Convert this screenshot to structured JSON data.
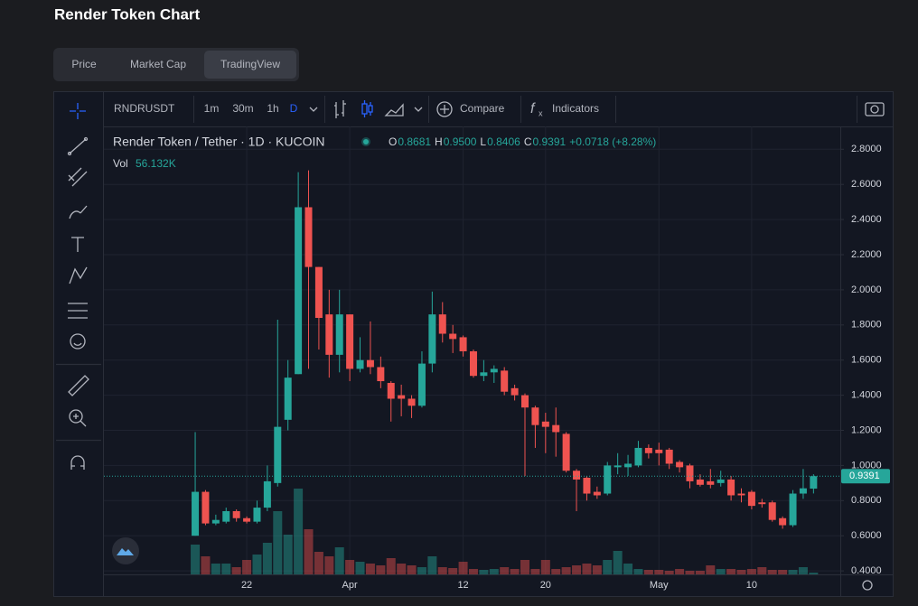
{
  "header": {
    "title": "Render Token Chart"
  },
  "tabs": [
    "Price",
    "Market Cap",
    "TradingView"
  ],
  "toolbar": {
    "symbol": "RNDRUSDT",
    "intervals": [
      "1m",
      "30m",
      "1h",
      "D"
    ],
    "compare": "Compare",
    "indicators": "Indicators"
  },
  "legend": {
    "name": "Render Token / Tether · 1D · KUCOIN",
    "ohlc": [
      {
        "key": "O",
        "value": "0.8681"
      },
      {
        "key": "H",
        "value": "0.9500"
      },
      {
        "key": "L",
        "value": "0.8406"
      },
      {
        "key": "C",
        "value": "0.9391"
      }
    ],
    "change": "+0.0718 (+8.28%)",
    "vol_key": "Vol",
    "vol_label": "56.132K"
  },
  "chart_data": {
    "type": "candlestick",
    "up_color": "#26a69a",
    "down_color": "#ef5350",
    "grid": true,
    "open": [
      0.6,
      0.85,
      0.67,
      0.68,
      0.74,
      0.7,
      0.68,
      0.76,
      0.9,
      1.26,
      1.52,
      2.47,
      2.13,
      1.86,
      1.63,
      1.86,
      1.55,
      1.6,
      1.56,
      1.47,
      1.4,
      1.38,
      1.34,
      1.58,
      1.86,
      1.75,
      1.73,
      1.65,
      1.51,
      1.53,
      1.54,
      1.44,
      1.4,
      1.33,
      1.25,
      1.23,
      1.18,
      0.97,
      0.93,
      0.85,
      0.84,
      0.99,
      0.99,
      1.0,
      1.1,
      1.09,
      1.09,
      1.02,
      1.0,
      0.92,
      0.91,
      0.9,
      0.92,
      0.84,
      0.85,
      0.79,
      0.79,
      0.7,
      0.66,
      0.84,
      0.8681
    ],
    "high": [
      1.19,
      0.86,
      0.72,
      0.76,
      0.75,
      0.71,
      0.8,
      1.0,
      1.83,
      1.6,
      2.67,
      2.68,
      2.13,
      2.0,
      2.0,
      1.86,
      1.73,
      1.82,
      1.62,
      1.48,
      1.46,
      1.4,
      1.65,
      1.99,
      1.93,
      1.8,
      1.74,
      1.66,
      1.6,
      1.57,
      1.56,
      1.46,
      1.41,
      1.34,
      1.3,
      1.33,
      1.19,
      0.98,
      0.94,
      0.88,
      1.02,
      1.07,
      1.06,
      1.14,
      1.12,
      1.13,
      1.1,
      1.03,
      1.01,
      0.95,
      0.98,
      0.97,
      0.94,
      0.87,
      0.86,
      0.81,
      0.8,
      0.71,
      0.86,
      0.98,
      0.95
    ],
    "low": [
      0.6,
      0.66,
      0.66,
      0.67,
      0.68,
      0.67,
      0.67,
      0.74,
      0.88,
      1.2,
      1.52,
      1.55,
      1.66,
      1.5,
      1.53,
      1.48,
      1.53,
      1.52,
      1.44,
      1.25,
      1.28,
      1.27,
      1.33,
      1.53,
      1.7,
      1.64,
      1.62,
      1.5,
      1.48,
      1.47,
      1.4,
      1.37,
      0.94,
      1.1,
      1.07,
      1.05,
      0.96,
      0.74,
      0.8,
      0.81,
      0.83,
      0.95,
      0.94,
      0.99,
      1.04,
      1.0,
      0.98,
      0.96,
      0.87,
      0.88,
      0.87,
      0.88,
      0.8,
      0.79,
      0.75,
      0.76,
      0.68,
      0.64,
      0.65,
      0.81,
      0.8406
    ],
    "close": [
      0.85,
      0.67,
      0.69,
      0.74,
      0.7,
      0.68,
      0.76,
      0.91,
      1.22,
      1.5,
      2.47,
      2.13,
      1.84,
      1.63,
      1.86,
      1.55,
      1.6,
      1.56,
      1.48,
      1.38,
      1.38,
      1.34,
      1.58,
      1.86,
      1.75,
      1.72,
      1.65,
      1.51,
      1.53,
      1.55,
      1.42,
      1.4,
      1.33,
      1.23,
      1.22,
      1.19,
      0.97,
      0.92,
      0.84,
      0.83,
      1.0,
      1.0,
      1.01,
      1.1,
      1.07,
      1.07,
      1.01,
      0.99,
      0.91,
      0.89,
      0.89,
      0.92,
      0.83,
      0.83,
      0.77,
      0.78,
      0.69,
      0.66,
      0.84,
      0.87,
      0.9391
    ],
    "volume": [
      924000,
      560000,
      336000,
      336000,
      224000,
      448000,
      616000,
      980000,
      1960000,
      1232000,
      2660000,
      1400000,
      700000,
      560000,
      840000,
      448000,
      392000,
      336000,
      280000,
      504000,
      336000,
      280000,
      224000,
      560000,
      224000,
      196000,
      392000,
      168000,
      140000,
      168000,
      224000,
      168000,
      448000,
      168000,
      448000,
      168000,
      224000,
      280000,
      336000,
      280000,
      448000,
      728000,
      336000,
      168000,
      140000,
      140000,
      112000,
      168000,
      112000,
      112000,
      280000,
      168000,
      168000,
      140000,
      168000,
      224000,
      140000,
      140000,
      140000,
      224000,
      56132
    ],
    "xlim": [
      -8.86,
      62.6
    ],
    "xticks": [
      {
        "value": 5,
        "label": "22"
      },
      {
        "value": 15,
        "label": "Apr"
      },
      {
        "value": 26,
        "label": "12"
      },
      {
        "value": 34,
        "label": "20"
      },
      {
        "value": 45,
        "label": "May"
      },
      {
        "value": 54,
        "label": "10"
      }
    ],
    "ylim": [
      0.38,
      2.93
    ],
    "yticks": [
      {
        "value": 0.4,
        "label": "0.4000"
      },
      {
        "value": 0.6,
        "label": "0.6000"
      },
      {
        "value": 0.8,
        "label": "0.8000"
      },
      {
        "value": 1.0,
        "label": "1.0000"
      },
      {
        "value": 1.2,
        "label": "1.2000"
      },
      {
        "value": 1.4,
        "label": "1.4000"
      },
      {
        "value": 1.6,
        "label": "1.6000"
      },
      {
        "value": 1.8,
        "label": "1.8000"
      },
      {
        "value": 2.0,
        "label": "2.0000"
      },
      {
        "value": 2.2,
        "label": "2.2000"
      },
      {
        "value": 2.4,
        "label": "2.4000"
      },
      {
        "value": 2.6,
        "label": "2.6000"
      },
      {
        "value": 2.8,
        "label": "2.8000"
      }
    ]
  }
}
